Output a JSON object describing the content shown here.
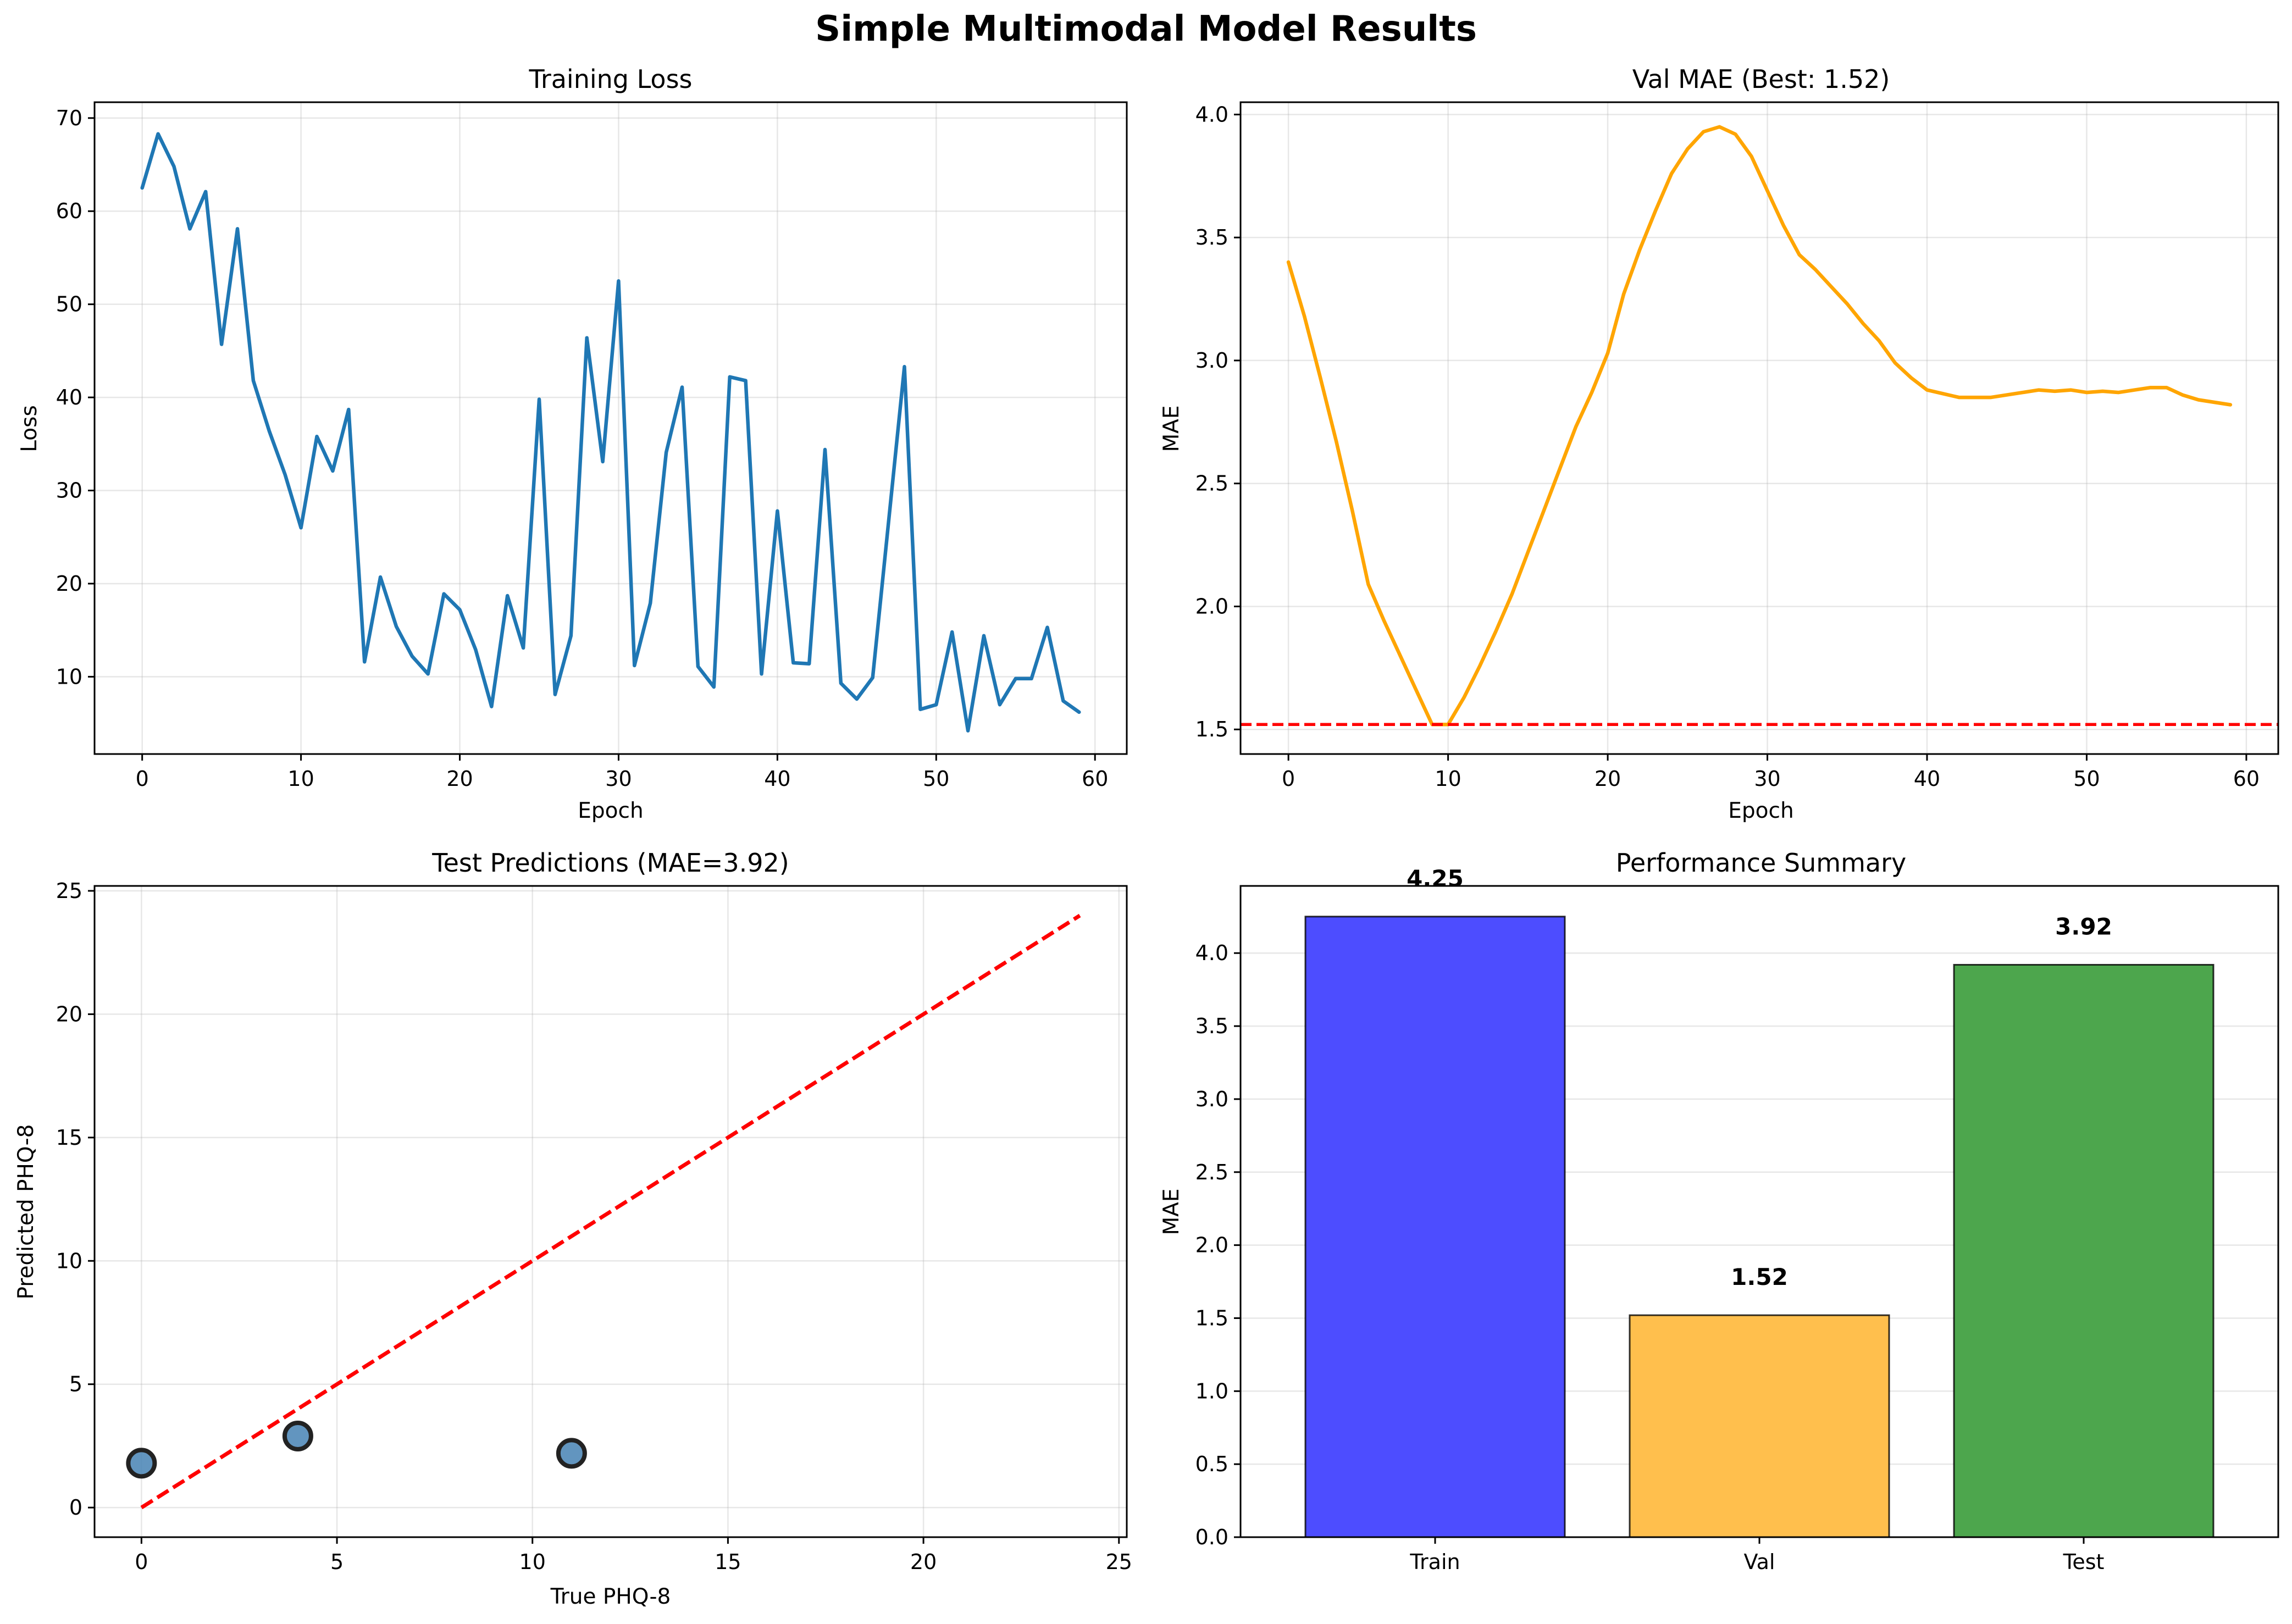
{
  "suptitle": "Simple Multimodal Model Results",
  "chart_data": [
    {
      "id": "loss",
      "type": "line",
      "title": "Training Loss",
      "xlabel": "Epoch",
      "ylabel": "Loss",
      "xlim": [
        -3,
        62
      ],
      "ylim": [
        1.7,
        71.7
      ],
      "xticks": [
        0,
        10,
        20,
        30,
        40,
        50,
        60
      ],
      "yticks": [
        10,
        20,
        30,
        40,
        50,
        60,
        70
      ],
      "grid": true,
      "series": [
        {
          "color": "#1f77b4",
          "x": [
            0,
            1,
            2,
            3,
            4,
            5,
            6,
            7,
            8,
            9,
            10,
            11,
            12,
            13,
            14,
            15,
            16,
            17,
            18,
            19,
            20,
            21,
            22,
            23,
            24,
            25,
            26,
            27,
            28,
            29,
            30,
            31,
            32,
            33,
            34,
            35,
            36,
            37,
            38,
            39,
            40,
            41,
            42,
            43,
            44,
            45,
            46,
            47,
            48,
            49,
            50,
            51,
            52,
            53,
            54,
            55,
            56,
            57,
            58,
            59
          ],
          "y": [
            62.5,
            68.3,
            64.8,
            58.1,
            62.1,
            45.7,
            58.1,
            41.8,
            36.4,
            31.7,
            26.0,
            35.8,
            32.1,
            38.7,
            11.6,
            20.7,
            15.4,
            12.2,
            10.3,
            18.9,
            17.2,
            12.9,
            6.8,
            18.7,
            13.1,
            39.8,
            8.1,
            14.4,
            46.4,
            33.1,
            52.5,
            11.2,
            17.9,
            34.1,
            41.1,
            11.1,
            8.9,
            42.2,
            41.8,
            10.3,
            27.8,
            11.5,
            11.4,
            34.4,
            9.3,
            7.6,
            9.9,
            26.6,
            43.3,
            6.5,
            7.0,
            14.8,
            4.2,
            14.4,
            7.0,
            9.8,
            9.8,
            15.3,
            7.4,
            6.2
          ]
        }
      ]
    },
    {
      "id": "valmae",
      "type": "line",
      "title": "Val MAE (Best: 1.52)",
      "xlabel": "Epoch",
      "ylabel": "MAE",
      "xlim": [
        -3,
        62
      ],
      "ylim": [
        1.4,
        4.05
      ],
      "xticks": [
        0,
        10,
        20,
        30,
        40,
        50,
        60
      ],
      "yticks": [
        1.5,
        2.0,
        2.5,
        3.0,
        3.5,
        4.0
      ],
      "ytick_labels": [
        "1.5",
        "2.0",
        "2.5",
        "3.0",
        "3.5",
        "4.0"
      ],
      "grid": true,
      "hline": {
        "y": 1.52,
        "color": "#ff0000",
        "style": "dashed"
      },
      "series": [
        {
          "color": "#ffa500",
          "x": [
            0,
            1,
            2,
            3,
            4,
            5,
            6,
            7,
            8,
            9,
            10,
            11,
            12,
            13,
            14,
            15,
            16,
            17,
            18,
            19,
            20,
            21,
            22,
            23,
            24,
            25,
            26,
            27,
            28,
            29,
            30,
            31,
            32,
            33,
            34,
            35,
            36,
            37,
            38,
            39,
            40,
            41,
            42,
            43,
            44,
            45,
            46,
            47,
            48,
            49,
            50,
            51,
            52,
            53,
            54,
            55,
            56,
            57,
            58,
            59
          ],
          "y": [
            3.4,
            3.18,
            2.93,
            2.67,
            2.39,
            2.09,
            1.94,
            1.8,
            1.66,
            1.52,
            1.52,
            1.63,
            1.76,
            1.9,
            2.05,
            2.22,
            2.39,
            2.56,
            2.73,
            2.87,
            3.03,
            3.27,
            3.45,
            3.61,
            3.76,
            3.86,
            3.93,
            3.95,
            3.92,
            3.83,
            3.69,
            3.55,
            3.43,
            3.37,
            3.3,
            3.23,
            3.15,
            3.08,
            2.99,
            2.93,
            2.88,
            2.865,
            2.85,
            2.85,
            2.85,
            2.86,
            2.87,
            2.88,
            2.875,
            2.88,
            2.87,
            2.875,
            2.87,
            2.88,
            2.89,
            2.89,
            2.86,
            2.84,
            2.83,
            2.82
          ]
        }
      ]
    },
    {
      "id": "scatter",
      "type": "scatter",
      "title": "Test Predictions (MAE=3.92)",
      "xlabel": "True PHQ-8",
      "ylabel": "Predicted PHQ-8",
      "xlim": [
        -1.2,
        25.2
      ],
      "ylim": [
        -1.2,
        25.2
      ],
      "xticks": [
        0,
        5,
        10,
        15,
        20,
        25
      ],
      "yticks": [
        0,
        5,
        10,
        15,
        20,
        25
      ],
      "grid": true,
      "diagonal": {
        "from": [
          0,
          0
        ],
        "to": [
          24,
          24
        ],
        "color": "#ff0000",
        "style": "dashed"
      },
      "points": {
        "color": "#4682b4",
        "edge": "#222222",
        "x": [
          0,
          4,
          11
        ],
        "y": [
          1.8,
          2.9,
          2.2
        ]
      }
    },
    {
      "id": "bars",
      "type": "bar",
      "title": "Performance Summary",
      "xlabel": "",
      "ylabel": "MAE",
      "ylim": [
        0,
        4.46
      ],
      "yticks": [
        0.0,
        0.5,
        1.0,
        1.5,
        2.0,
        2.5,
        3.0,
        3.5,
        4.0
      ],
      "ytick_labels": [
        "0.0",
        "0.5",
        "1.0",
        "1.5",
        "2.0",
        "2.5",
        "3.0",
        "3.5",
        "4.0"
      ],
      "grid": true,
      "categories": [
        "Train",
        "Val",
        "Test"
      ],
      "values": [
        4.25,
        1.52,
        3.92
      ],
      "value_labels": [
        "4.25",
        "1.52",
        "3.92"
      ],
      "colors": [
        "#4d4dff",
        "#ffbf4d",
        "#4da64d"
      ]
    }
  ]
}
